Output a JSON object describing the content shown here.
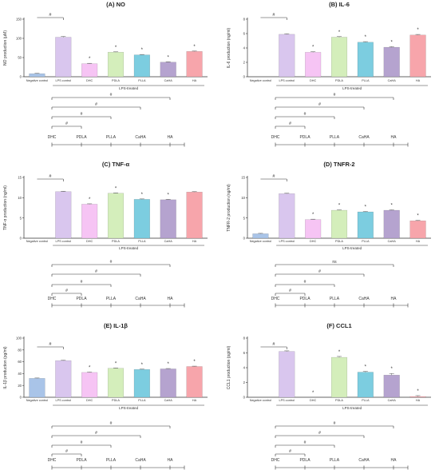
{
  "colors": {
    "negative_control": "#a9c4e8",
    "lps_control": "#d9c6ee",
    "DHC": "#f6c4f4",
    "PDLA": "#d4eebb",
    "PLLA": "#7ccde0",
    "CaHA": "#b5a3cf",
    "HA": "#f7a5ab",
    "axis": "#333333"
  },
  "chart_data": [
    {
      "type": "bar",
      "title": "(A) NO",
      "ylabel": "NO production (μM)",
      "ylim": [
        0,
        150
      ],
      "yticks": [
        "0",
        "50",
        "100",
        "150"
      ],
      "categories": [
        "Negative control",
        "LPS control",
        "DHC",
        "PDLA",
        "PLLA",
        "CaHA",
        "HA"
      ],
      "values": [
        8,
        103,
        34,
        64,
        57,
        38,
        66
      ],
      "errors": [
        1,
        2,
        1,
        1,
        1,
        1,
        1
      ],
      "sig_marks": [
        "",
        "",
        "*",
        "*",
        "*",
        "*",
        "*"
      ],
      "group_label": "LPS-treated",
      "hash_label": "#",
      "comparison_axis": [
        "DHC",
        "PDLA",
        "PLLA",
        "CaHA",
        "HA"
      ],
      "comparison_marks": [
        "#",
        "#",
        "#",
        "#"
      ]
    },
    {
      "type": "bar",
      "title": "(B) IL-6",
      "ylabel": "IL-6 production (ng/ml)",
      "ylim": [
        0,
        8
      ],
      "yticks": [
        "0",
        "2",
        "4",
        "6",
        "8"
      ],
      "categories": [
        "Negative control",
        "LPS control",
        "DHC",
        "PDLA",
        "PLLA",
        "CaHA",
        "HA"
      ],
      "values": [
        0,
        5.9,
        3.4,
        5.5,
        4.8,
        4.1,
        5.8
      ],
      "errors": [
        0,
        0.08,
        0.08,
        0.08,
        0.08,
        0.08,
        0.08
      ],
      "sig_marks": [
        "",
        "",
        "*",
        "*",
        "*",
        "*",
        "*"
      ],
      "group_label": "LPS-treated",
      "hash_label": "#",
      "comparison_axis": [
        "DHC",
        "PDLA",
        "PLLA",
        "CaHA",
        "HA"
      ],
      "comparison_marks": [
        "#",
        "#",
        "#",
        "#"
      ]
    },
    {
      "type": "bar",
      "title": "(C) TNF-α",
      "ylabel": "TNF-α production (ng/ml)",
      "ylim": [
        0,
        15
      ],
      "yticks": [
        "0",
        "5",
        "10",
        "15"
      ],
      "categories": [
        "Negative control",
        "LPS control",
        "DHC",
        "PDLA",
        "PLLA",
        "CaHA",
        "HA"
      ],
      "values": [
        0,
        11.5,
        8.4,
        11.1,
        9.6,
        9.5,
        11.4
      ],
      "errors": [
        0,
        0.1,
        0.1,
        0.1,
        0.1,
        0.1,
        0.1
      ],
      "sig_marks": [
        "",
        "",
        "*",
        "*",
        "*",
        "*",
        ""
      ],
      "group_label": "LPS-treated",
      "hash_label": "#",
      "comparison_axis": [
        "DHC",
        "PDLA",
        "PLLA",
        "CaHA",
        "HA"
      ],
      "comparison_marks": [
        "#",
        "#",
        "#",
        "#"
      ]
    },
    {
      "type": "bar",
      "title": "(D) TNFR-2",
      "ylabel": "TNFR-2 production (ng/ml)",
      "ylim": [
        0,
        15
      ],
      "yticks": [
        "0",
        "5",
        "10",
        "15"
      ],
      "categories": [
        "Negative control",
        "LPS control",
        "DHC",
        "PDLA",
        "PLLA",
        "CaHA",
        "HA"
      ],
      "values": [
        1.1,
        11.0,
        4.6,
        6.9,
        6.5,
        6.9,
        4.3
      ],
      "errors": [
        0.1,
        0.1,
        0.1,
        0.1,
        0.1,
        0.1,
        0.1
      ],
      "sig_marks": [
        "",
        "",
        "*",
        "*",
        "*",
        "*",
        "*"
      ],
      "group_label": "LPS-treated",
      "hash_label": "#",
      "comparison_axis": [
        "DHC",
        "PDLA",
        "PLLA",
        "CaHA",
        "HA"
      ],
      "comparison_marks": [
        "#",
        "#",
        "#",
        "ns"
      ]
    },
    {
      "type": "bar",
      "title": "(E) IL-1β",
      "ylabel": "IL-1β production (pg/ml)",
      "ylim": [
        0,
        100
      ],
      "yticks": [
        "0",
        "20",
        "40",
        "60",
        "80",
        "100"
      ],
      "categories": [
        "Negative control",
        "LPS control",
        "DHC",
        "PDLA",
        "PLLA",
        "CaHA",
        "HA"
      ],
      "values": [
        32,
        62,
        42,
        49,
        47,
        48,
        52
      ],
      "errors": [
        0.6,
        0.6,
        0.6,
        0.6,
        0.6,
        0.6,
        0.6
      ],
      "sig_marks": [
        "",
        "",
        "*",
        "*",
        "*",
        "*",
        "*"
      ],
      "group_label": "LPS-treated",
      "hash_label": "#",
      "comparison_axis": [
        "DHC",
        "PDLA",
        "PLLA",
        "CaHA",
        "HA"
      ],
      "comparison_marks": [
        "#",
        "#",
        "#",
        "#"
      ]
    },
    {
      "type": "bar",
      "title": "(F) CCL1",
      "ylabel": "CCL1 production (pg/ml)",
      "ylim": [
        0,
        8
      ],
      "yticks": [
        "0",
        "2",
        "4",
        "6",
        "8"
      ],
      "categories": [
        "Negative control",
        "LPS control",
        "DHC",
        "PDLA",
        "PLLA",
        "CaHA",
        "HA"
      ],
      "values": [
        0,
        6.2,
        0,
        5.4,
        3.4,
        3.0,
        0.1
      ],
      "errors": [
        0,
        0.08,
        0,
        0.12,
        0.1,
        0.22,
        0.12
      ],
      "sig_marks": [
        "",
        "",
        "*",
        "*",
        "*",
        "*",
        "*"
      ],
      "group_label": "LPS-treated",
      "hash_label": "#",
      "comparison_axis": [
        "DHC",
        "PDLA",
        "PLLA",
        "CaHA",
        "HA"
      ],
      "comparison_marks": [
        "#",
        "#",
        "#",
        "#"
      ]
    }
  ]
}
